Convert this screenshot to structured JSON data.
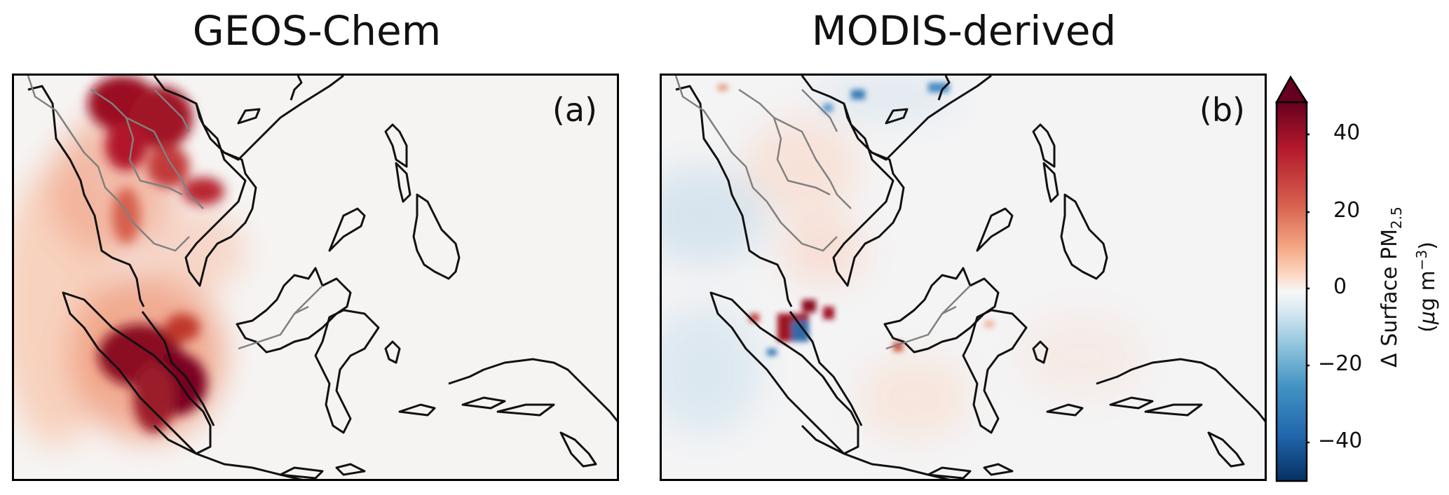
{
  "panels": [
    {
      "title": "GEOS-Chem",
      "label": "(a)"
    },
    {
      "title": "MODIS-derived",
      "label": "(b)"
    }
  ],
  "colorbar": {
    "label_main": "Δ Surface PM",
    "label_sub": "2.5",
    "units_prefix": "(",
    "units_mu": "μ",
    "units_rest": "g m",
    "units_sup": "−3",
    "units_close": ")",
    "ticks": [
      {
        "value": 40,
        "label": "40"
      },
      {
        "value": 20,
        "label": "20"
      },
      {
        "value": 0,
        "label": "0"
      },
      {
        "value": -20,
        "label": "−20"
      },
      {
        "value": -40,
        "label": "−40"
      }
    ],
    "range": [
      -50,
      50
    ],
    "extend": "max",
    "colormap": "RdBu_r",
    "colors": {
      "max": "#67001f",
      "high": "#b2182b",
      "midhigh": "#f4a582",
      "mid": "#f7f7f7",
      "midlow": "#92c5de",
      "low": "#2166ac",
      "min": "#053061"
    }
  }
}
